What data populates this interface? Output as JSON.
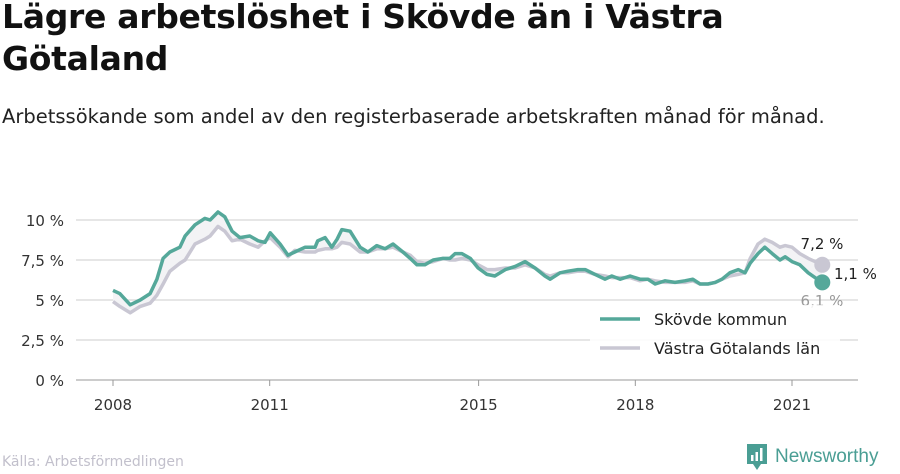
{
  "title": "Lägre arbetslöshet i Skövde än i Västra Götaland",
  "subtitle": "Arbetssökande som andel av den registerbaserade arbetskraften månad för månad.",
  "source": "Källa: Arbetsförmedlingen",
  "brand": "Newsworthy",
  "colors": {
    "skovde": "#55a89a",
    "vg": "#c9c7d3",
    "grid": "#dedede",
    "axis": "#cccccc"
  },
  "chart_data": {
    "type": "line",
    "xlabel": "",
    "ylabel": "",
    "xlim": [
      2008,
      2021.58
    ],
    "ylim": [
      0,
      10
    ],
    "grid": true,
    "legend_position": "bottom-right",
    "x_ticks": [
      {
        "v": 2008,
        "label": "2008"
      },
      {
        "v": 2011,
        "label": "2011"
      },
      {
        "v": 2015,
        "label": "2015"
      },
      {
        "v": 2018,
        "label": "2018"
      },
      {
        "v": 2021,
        "label": "2021"
      }
    ],
    "y_ticks": [
      {
        "v": 0,
        "label": "0 %"
      },
      {
        "v": 2.5,
        "label": "2,5 %"
      },
      {
        "v": 5,
        "label": "5 %"
      },
      {
        "v": 7.5,
        "label": "7,5 %"
      },
      {
        "v": 10,
        "label": "10 %"
      }
    ],
    "x": [
      2008.0,
      2008.13,
      2008.33,
      2008.52,
      2008.71,
      2008.84,
      2008.96,
      2009.09,
      2009.28,
      2009.38,
      2009.57,
      2009.76,
      2009.86,
      2010.01,
      2010.14,
      2010.28,
      2010.43,
      2010.62,
      2010.78,
      2010.91,
      2011.01,
      2011.2,
      2011.35,
      2011.48,
      2011.68,
      2011.87,
      2011.92,
      2012.06,
      2012.19,
      2012.29,
      2012.38,
      2012.54,
      2012.73,
      2012.88,
      2013.05,
      2013.21,
      2013.36,
      2013.55,
      2013.69,
      2013.82,
      2013.97,
      2014.13,
      2014.32,
      2014.45,
      2014.55,
      2014.68,
      2014.84,
      2014.99,
      2015.16,
      2015.31,
      2015.51,
      2015.7,
      2015.89,
      2016.08,
      2016.27,
      2016.37,
      2016.56,
      2016.71,
      2016.9,
      2017.04,
      2017.23,
      2017.42,
      2017.55,
      2017.71,
      2017.9,
      2018.09,
      2018.24,
      2018.38,
      2018.57,
      2018.76,
      2018.95,
      2019.1,
      2019.24,
      2019.39,
      2019.53,
      2019.66,
      2019.81,
      2019.97,
      2020.1,
      2020.2,
      2020.35,
      2020.48,
      2020.62,
      2020.77,
      2020.87,
      2021.0,
      2021.15,
      2021.31,
      2021.44,
      2021.58
    ],
    "series": [
      {
        "name": "Skövde kommun",
        "end_label": "6,1 %",
        "values": [
          5.6,
          5.4,
          4.7,
          5.0,
          5.4,
          6.3,
          7.6,
          8.0,
          8.3,
          9.0,
          9.7,
          10.1,
          10.0,
          10.5,
          10.2,
          9.3,
          8.9,
          9.0,
          8.7,
          8.6,
          9.2,
          8.5,
          7.8,
          8.0,
          8.3,
          8.3,
          8.7,
          8.9,
          8.3,
          8.8,
          9.4,
          9.3,
          8.3,
          8.0,
          8.4,
          8.2,
          8.5,
          8.0,
          7.6,
          7.2,
          7.2,
          7.5,
          7.6,
          7.6,
          7.9,
          7.9,
          7.6,
          7.0,
          6.6,
          6.5,
          6.9,
          7.1,
          7.4,
          7.0,
          6.5,
          6.3,
          6.7,
          6.8,
          6.9,
          6.9,
          6.6,
          6.3,
          6.5,
          6.3,
          6.5,
          6.3,
          6.3,
          6.0,
          6.2,
          6.1,
          6.2,
          6.3,
          6.0,
          6.0,
          6.1,
          6.3,
          6.7,
          6.9,
          6.7,
          7.3,
          7.9,
          8.3,
          7.9,
          7.5,
          7.7,
          7.4,
          7.2,
          6.7,
          6.4,
          6.1
        ]
      },
      {
        "name": "Västra Götalands län",
        "end_label": "7,2 %",
        "values": [
          4.9,
          4.6,
          4.2,
          4.6,
          4.8,
          5.3,
          6.0,
          6.8,
          7.3,
          7.5,
          8.5,
          8.8,
          9.0,
          9.6,
          9.3,
          8.7,
          8.8,
          8.5,
          8.3,
          8.7,
          8.9,
          8.3,
          7.7,
          8.1,
          8.0,
          8.0,
          8.1,
          8.2,
          8.2,
          8.3,
          8.6,
          8.5,
          8.0,
          8.0,
          8.2,
          8.2,
          8.3,
          8.0,
          7.8,
          7.4,
          7.3,
          7.4,
          7.6,
          7.5,
          7.5,
          7.6,
          7.5,
          7.2,
          6.9,
          6.9,
          7.0,
          7.0,
          7.2,
          7.0,
          6.6,
          6.5,
          6.7,
          6.7,
          6.8,
          6.8,
          6.6,
          6.5,
          6.4,
          6.4,
          6.4,
          6.2,
          6.3,
          6.2,
          6.1,
          6.1,
          6.1,
          6.2,
          6.0,
          6.0,
          6.1,
          6.3,
          6.5,
          6.6,
          6.7,
          7.6,
          8.5,
          8.8,
          8.6,
          8.3,
          8.4,
          8.3,
          7.9,
          7.6,
          7.4,
          7.2
        ]
      }
    ],
    "difference_label": "1,1 %"
  }
}
